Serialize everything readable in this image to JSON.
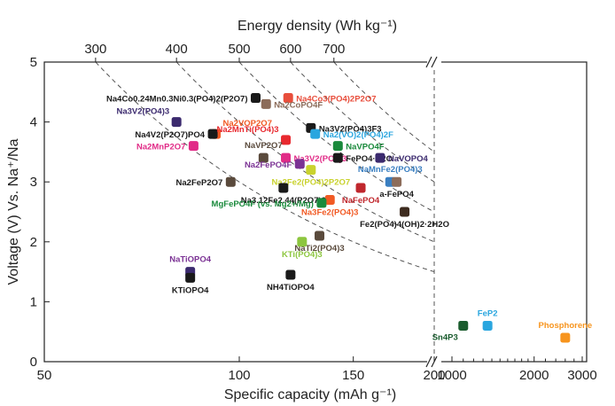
{
  "chart_data": {
    "type": "scatter",
    "title": "",
    "xlabel": "Specific capacity (mAh g⁻¹)",
    "ylabel": "Voltage (V) Vs. Na⁺/Na",
    "top_axis_label": "Energy density (Wh kg⁻¹)",
    "ylim": [
      0,
      5
    ],
    "y_ticks": [
      0,
      1,
      2,
      3,
      4,
      5
    ],
    "x_ticks_left": [
      50,
      100,
      150,
      200
    ],
    "x_ticks_right": [
      1000,
      2000,
      3000
    ],
    "x_break": "200 // 1000",
    "x_scale_left": "log",
    "energy_density_contours": [
      300,
      400,
      500,
      600,
      700
    ],
    "vertical_divider_at_capacity": 200,
    "points": [
      {
        "label": "Na4Co0.24Mn0.3Ni0.3(PO4)2(P2O7)",
        "x": 106,
        "y": 4.4,
        "color": "#1a1a1a",
        "label_color": "#1a1a1a",
        "label_pos": "left"
      },
      {
        "label": "Na4Co3(PO4)2P2O7",
        "x": 119,
        "y": 4.4,
        "color": "#e84e3c",
        "label_color": "#e84e3c",
        "label_pos": "right"
      },
      {
        "label": "Na3V2(PO4)3",
        "x": 80,
        "y": 4.0,
        "color": "#3b2a6e",
        "label_color": "#3b2a6e",
        "label_pos": "left-top"
      },
      {
        "label": "Na2VOP2O7",
        "x": 92,
        "y": 3.8,
        "color": "#f15a24",
        "label_color": "#f15a24",
        "label_pos": "right-top"
      },
      {
        "label": "Na4V2(P2O7)PO4",
        "x": 91,
        "y": 3.8,
        "color": "#1a1a1a",
        "label_color": "#1a1a1a",
        "label_pos": "left"
      },
      {
        "label": "Na2CoPO4F",
        "x": 110,
        "y": 4.3,
        "color": "#8c6c5a",
        "label_color": "#8c6c5a",
        "label_pos": "right"
      },
      {
        "label": "Na3V2(PO4)3F3",
        "x": 129,
        "y": 3.9,
        "color": "#1a1a1a",
        "label_color": "#1a1a1a",
        "label_pos": "right"
      },
      {
        "label": "Na2(VO)2(PO4)2F",
        "x": 131,
        "y": 3.8,
        "color": "#2aa6df",
        "label_color": "#2aa6df",
        "label_pos": "right"
      },
      {
        "label": "Na2MnTi(PO4)3",
        "x": 118,
        "y": 3.7,
        "color": "#e8292f",
        "label_color": "#e8292f",
        "label_pos": "left-top"
      },
      {
        "label": "NaVPO4F",
        "x": 142,
        "y": 3.6,
        "color": "#1a8a3c",
        "label_color": "#1a8a3c",
        "label_pos": "right"
      },
      {
        "label": "Na2MnP2O7",
        "x": 85,
        "y": 3.6,
        "color": "#e12b87",
        "label_color": "#e12b87",
        "label_pos": "left"
      },
      {
        "label": "NaVP2O7",
        "x": 109,
        "y": 3.4,
        "color": "#5a4a3c",
        "label_color": "#5a4a3c",
        "label_pos": "top"
      },
      {
        "label": "Na3V2(PO4)3",
        "x": 118,
        "y": 3.4,
        "color": "#e12b87",
        "label_color": "#e12b87",
        "label_pos": "right"
      },
      {
        "label": "FePO4·H2O",
        "x": 142,
        "y": 3.4,
        "color": "#1a1a1a",
        "label_color": "#1a1a1a",
        "label_pos": "right"
      },
      {
        "label": "NaVOPO4",
        "x": 165,
        "y": 3.4,
        "color": "#3b2a6e",
        "label_color": "#3b2a6e",
        "label_pos": "right"
      },
      {
        "label": "Na2FePO4F",
        "x": 124,
        "y": 3.3,
        "color": "#7b3294",
        "label_color": "#7b3294",
        "label_pos": "left"
      },
      {
        "label": "Na2Fe2(PO4)2P2O7",
        "x": 129,
        "y": 3.2,
        "color": "#c9d22e",
        "label_color": "#c9d22e",
        "label_pos": "bottom"
      },
      {
        "label": "NaMnFe2(PO4)3",
        "x": 171,
        "y": 3.0,
        "color": "#3a7fc1",
        "label_color": "#3a7fc1",
        "label_pos": "top"
      },
      {
        "label": "a-FePO4",
        "x": 175,
        "y": 3.0,
        "color": "#8c6c5a",
        "label_color": "#1a1a1a",
        "label_pos": "bottom"
      },
      {
        "label": "Na2FeP2O7",
        "x": 97,
        "y": 3.0,
        "color": "#5a4a3c",
        "label_color": "#1a1a1a",
        "label_pos": "left"
      },
      {
        "label": "Na3.12Fe2.44(P2O7)2",
        "x": 117,
        "y": 2.9,
        "color": "#1a1a1a",
        "label_color": "#1a1a1a",
        "label_pos": "bottom"
      },
      {
        "label": "NaFePO4",
        "x": 154,
        "y": 2.9,
        "color": "#c0272d",
        "label_color": "#c0272d",
        "label_pos": "bottom"
      },
      {
        "label": "Na3Fe2(PO4)3",
        "x": 138,
        "y": 2.7,
        "color": "#f15a24",
        "label_color": "#f15a24",
        "label_pos": "bottom"
      },
      {
        "label": "MgFePO4F (vs. Mg2+/Mg)",
        "x": 134,
        "y": 2.65,
        "color": "#1a8a3c",
        "label_color": "#1a8a3c",
        "label_pos": "left"
      },
      {
        "label": "Fe2(PO4)4(OH)2·2H2O",
        "x": 180,
        "y": 2.5,
        "color": "#3d2b1f",
        "label_color": "#1a1a1a",
        "label_pos": "bottom"
      },
      {
        "label": "NaTi2(PO4)3",
        "x": 133,
        "y": 2.1,
        "color": "#5a4a3c",
        "label_color": "#5a4a3c",
        "label_pos": "bottom"
      },
      {
        "label": "KTi(PO4)3",
        "x": 125,
        "y": 2.0,
        "color": "#8dc63f",
        "label_color": "#8dc63f",
        "label_pos": "bottom"
      },
      {
        "label": "NaTiOPO4",
        "x": 84,
        "y": 1.5,
        "color": "#3b2a6e",
        "label_color": "#7b3294",
        "label_pos": "top"
      },
      {
        "label": "KTiOPO4",
        "x": 84,
        "y": 1.4,
        "color": "#1a1a1a",
        "label_color": "#1a1a1a",
        "label_pos": "bottom"
      },
      {
        "label": "NH4TiOPO4",
        "x": 120,
        "y": 1.45,
        "color": "#1a1a1a",
        "label_color": "#1a1a1a",
        "label_pos": "bottom"
      },
      {
        "label": "Sn4P3",
        "x": 1100,
        "y": 0.6,
        "color": "#1a5c2e",
        "label_color": "#1a5c2e",
        "label_pos": "left-bottom"
      },
      {
        "label": "FeP2",
        "x": 1350,
        "y": 0.6,
        "color": "#2aa6df",
        "label_color": "#2aa6df",
        "label_pos": "top"
      },
      {
        "label": "Phosphorene",
        "x": 2600,
        "y": 0.4,
        "color": "#f7941d",
        "label_color": "#f7941d",
        "label_pos": "top"
      }
    ]
  },
  "axes": {
    "x_left_tick_labels": [
      "50",
      "100",
      "150",
      "200"
    ],
    "x_right_tick_labels": [
      "1000",
      "2000",
      "3000"
    ],
    "y_tick_labels": [
      "0",
      "1",
      "2",
      "3",
      "4",
      "5"
    ],
    "top_tick_labels": [
      "300",
      "400",
      "500",
      "600",
      "700"
    ]
  }
}
